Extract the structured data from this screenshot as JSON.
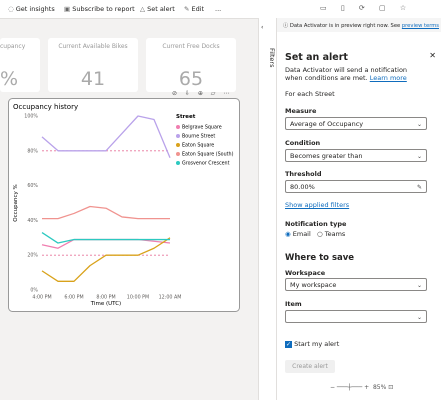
{
  "toolbar": {
    "items": [
      "Get insights",
      "Subscribe to report",
      "Set alert",
      "Edit",
      "..."
    ]
  },
  "cards": [
    {
      "title": "cupancy",
      "value": "%"
    },
    {
      "title": "Current Available Bikes",
      "value": 41
    },
    {
      "title": "Current Free Docks",
      "value": 65
    }
  ],
  "chart_data": {
    "type": "line",
    "title": "Occupancy history",
    "x_label": "Time (UTC)",
    "y_label": "Occupancy %",
    "legend_title": "Street",
    "x": [
      16,
      17,
      18,
      19,
      20,
      21,
      22,
      23,
      24
    ],
    "xlim": [
      16,
      24
    ],
    "xticks": [
      {
        "value": 16,
        "label": "4:00 PM"
      },
      {
        "value": 18,
        "label": "6:00 PM"
      },
      {
        "value": 20,
        "label": "8:00 PM"
      },
      {
        "value": 22,
        "label": "10:00 PM"
      },
      {
        "value": 24,
        "label": "12:00 AM"
      }
    ],
    "ylim": [
      0,
      100
    ],
    "yticks": [
      {
        "value": 0,
        "label": "0%"
      },
      {
        "value": 20,
        "label": "20%"
      },
      {
        "value": 40,
        "label": "40%"
      },
      {
        "value": 60,
        "label": "60%"
      },
      {
        "value": 80,
        "label": "80%"
      },
      {
        "value": 100,
        "label": "100%"
      }
    ],
    "reference_lines": [
      80,
      20
    ],
    "reference_color": "#e8739a",
    "series": [
      {
        "name": "Belgrave Square",
        "color": "#f07eb0",
        "values": [
          26,
          24,
          29,
          29,
          29,
          29,
          29,
          28,
          27
        ]
      },
      {
        "name": "Bourne Street",
        "color": "#b9a2ea",
        "values": [
          88,
          80,
          80,
          80,
          80,
          90,
          100,
          98,
          76
        ]
      },
      {
        "name": "Eaton Square",
        "color": "#d9a21b",
        "values": [
          11,
          5,
          5,
          14,
          20,
          20,
          20,
          24,
          30
        ]
      },
      {
        "name": "Eaton Square (South)",
        "color": "#f0938f",
        "values": [
          41,
          41,
          44,
          48,
          47,
          42,
          41,
          41,
          41
        ]
      },
      {
        "name": "Grosvenor Crescent",
        "color": "#2cc9c0",
        "values": [
          33,
          27,
          29,
          29,
          29,
          29,
          29,
          29,
          29
        ]
      }
    ]
  },
  "filters_tab": "Filters",
  "alert_panel": {
    "banner": "Data Activator is in preview right now. See",
    "banner_link": "preview terms",
    "title": "Set an alert",
    "description": "Data Activator will send a notification when conditions are met.",
    "learn_more": "Learn more",
    "for_each": "For each Street",
    "measure_label": "Measure",
    "measure_value": "Average of Occupancy",
    "condition_label": "Condition",
    "condition_value": "Becomes greater than",
    "threshold_label": "Threshold",
    "threshold_value": "80.00%",
    "show_filters": "Show applied filters",
    "notification_label": "Notification type",
    "notification_options": [
      "Email",
      "Teams"
    ],
    "save_heading": "Where to save",
    "workspace_label": "Workspace",
    "workspace_value": "My workspace",
    "item_label": "Item",
    "start_alert": "Start my alert",
    "create_button": "Create alert"
  },
  "zoom": "85%"
}
